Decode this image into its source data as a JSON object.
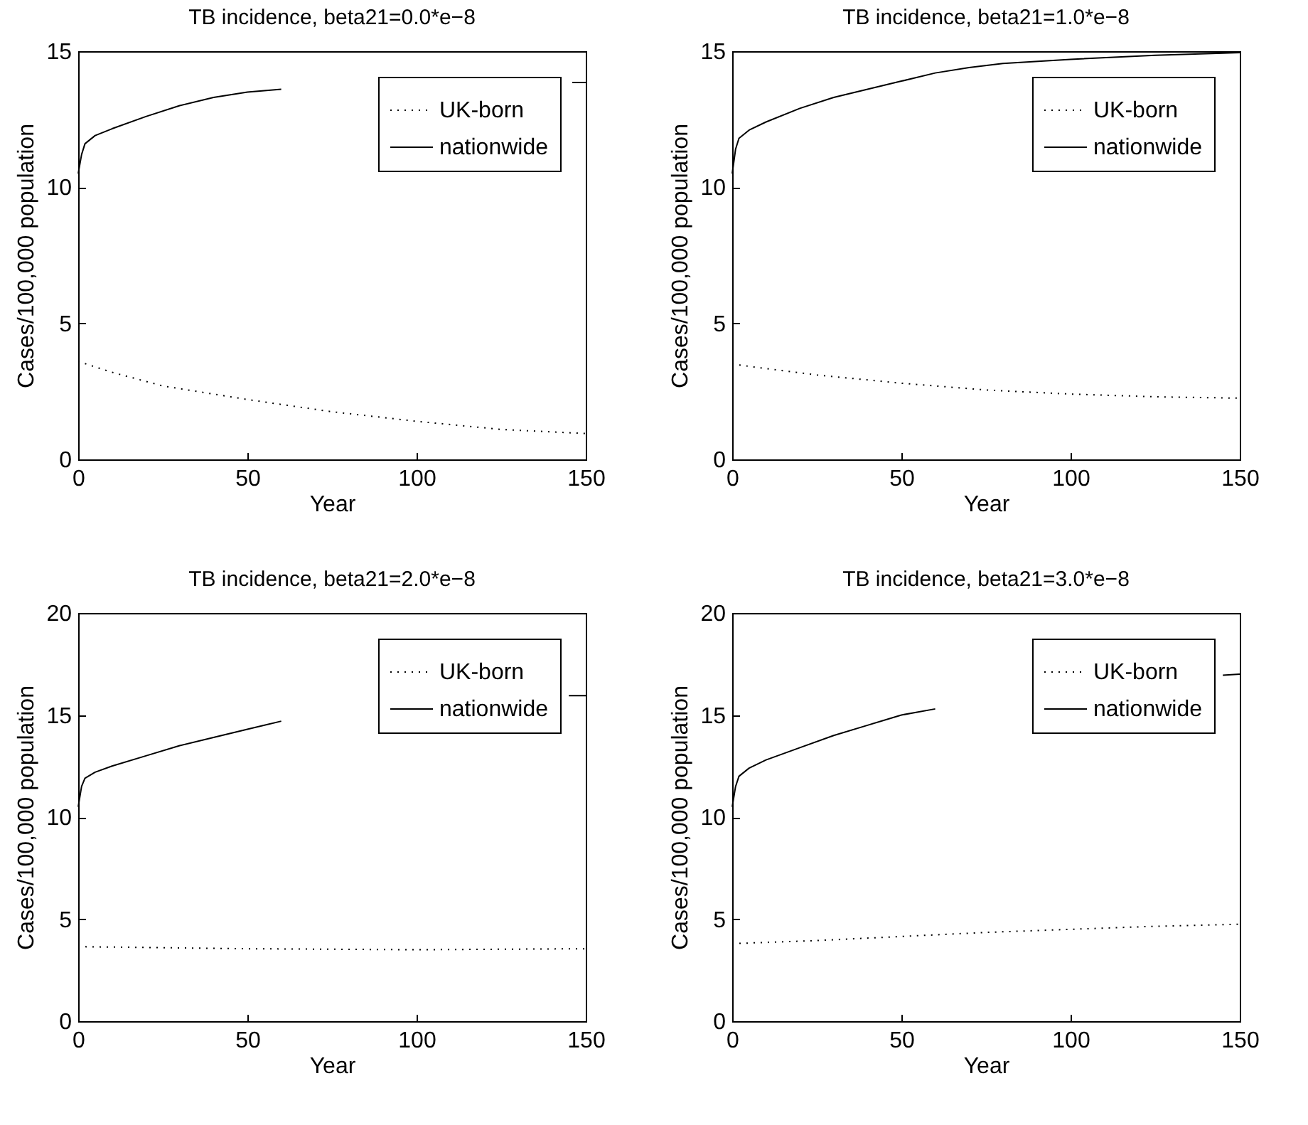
{
  "chart_data": [
    {
      "type": "line",
      "title": "TB incidence, beta21=0.0*e−8",
      "xlabel": "Year",
      "ylabel": "Cases/100,000 population",
      "xlim": [
        0,
        150
      ],
      "xticks": [
        0,
        50,
        100,
        150
      ],
      "ylim": [
        0,
        15
      ],
      "yticks": [
        0,
        5,
        10,
        15
      ],
      "grid": false,
      "legend": "top right",
      "series": [
        {
          "name": "UK-born",
          "color": "#000000",
          "line_style": "dotted",
          "x": [
            0,
            10,
            25,
            50,
            75,
            100,
            125,
            150
          ],
          "values": [
            3.6,
            3.2,
            2.7,
            2.2,
            1.75,
            1.4,
            1.1,
            0.95
          ]
        },
        {
          "name": "nationwide",
          "color": "#000000",
          "line_style": "solid",
          "x": [
            0,
            1,
            2,
            5,
            10,
            20,
            30,
            40,
            50,
            60,
            70,
            100,
            140,
            146,
            150
          ],
          "values": [
            10.5,
            11.2,
            11.6,
            11.9,
            12.15,
            12.6,
            13.0,
            13.3,
            13.5,
            13.6,
            null,
            null,
            null,
            13.85,
            13.85
          ]
        }
      ]
    },
    {
      "type": "line",
      "title": "TB incidence, beta21=1.0*e−8",
      "xlabel": "Year",
      "ylabel": "Cases/100,000 population",
      "xlim": [
        0,
        150
      ],
      "xticks": [
        0,
        50,
        100,
        150
      ],
      "ylim": [
        0,
        15
      ],
      "yticks": [
        0,
        5,
        10,
        15
      ],
      "grid": false,
      "legend": "top right",
      "series": [
        {
          "name": "UK-born",
          "color": "#000000",
          "line_style": "dotted",
          "x": [
            0,
            25,
            50,
            75,
            100,
            125,
            150
          ],
          "values": [
            3.5,
            3.1,
            2.8,
            2.55,
            2.4,
            2.3,
            2.25
          ]
        },
        {
          "name": "nationwide",
          "color": "#000000",
          "line_style": "solid",
          "x": [
            0,
            1,
            2,
            5,
            10,
            20,
            30,
            40,
            50,
            60,
            70,
            80,
            100,
            125,
            150
          ],
          "values": [
            10.5,
            11.4,
            11.8,
            12.1,
            12.4,
            12.9,
            13.3,
            13.6,
            13.9,
            14.2,
            14.4,
            14.55,
            14.7,
            14.85,
            14.95
          ]
        }
      ]
    },
    {
      "type": "line",
      "title": "TB incidence, beta21=2.0*e−8",
      "xlabel": "Year",
      "ylabel": "Cases/100,000 population",
      "xlim": [
        0,
        150
      ],
      "xticks": [
        0,
        50,
        100,
        150
      ],
      "ylim": [
        0,
        20
      ],
      "yticks": [
        0,
        5,
        10,
        15,
        20
      ],
      "grid": false,
      "legend": "top right",
      "series": [
        {
          "name": "UK-born",
          "color": "#000000",
          "line_style": "dotted",
          "x": [
            0,
            50,
            100,
            150
          ],
          "values": [
            3.65,
            3.55,
            3.5,
            3.55
          ]
        },
        {
          "name": "nationwide",
          "color": "#000000",
          "line_style": "solid",
          "x": [
            0,
            1,
            2,
            5,
            10,
            20,
            30,
            40,
            50,
            60,
            70,
            100,
            140,
            145,
            150
          ],
          "values": [
            10.5,
            11.5,
            11.9,
            12.2,
            12.5,
            13.0,
            13.5,
            13.9,
            14.3,
            14.7,
            null,
            null,
            null,
            15.95,
            15.95
          ]
        }
      ]
    },
    {
      "type": "line",
      "title": "TB incidence, beta21=3.0*e−8",
      "xlabel": "Year",
      "ylabel": "Cases/100,000 population",
      "xlim": [
        0,
        150
      ],
      "xticks": [
        0,
        50,
        100,
        150
      ],
      "ylim": [
        0,
        20
      ],
      "yticks": [
        0,
        5,
        10,
        15,
        20
      ],
      "grid": false,
      "legend": "top right",
      "series": [
        {
          "name": "UK-born",
          "color": "#000000",
          "line_style": "dotted",
          "x": [
            0,
            25,
            50,
            75,
            100,
            125,
            150
          ],
          "values": [
            3.8,
            3.95,
            4.15,
            4.35,
            4.5,
            4.65,
            4.75
          ]
        },
        {
          "name": "nationwide",
          "color": "#000000",
          "line_style": "solid",
          "x": [
            0,
            1,
            2,
            5,
            10,
            20,
            30,
            40,
            50,
            60,
            70,
            100,
            140,
            145,
            150
          ],
          "values": [
            10.5,
            11.5,
            12.0,
            12.4,
            12.8,
            13.4,
            14.0,
            14.5,
            15.0,
            15.3,
            null,
            null,
            null,
            16.95,
            17.0
          ]
        }
      ]
    }
  ]
}
